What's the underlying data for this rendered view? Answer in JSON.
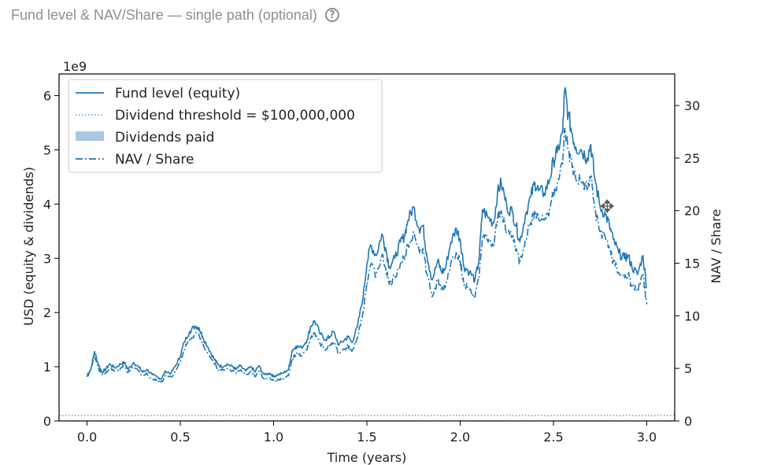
{
  "caption": {
    "title": "Fund level & NAV/Share — single path (optional)",
    "help_icon": "question-circle-icon"
  },
  "colors": {
    "line": "#1f77b4",
    "threshold": "#5b9bd5",
    "dividends": "#a9c8e6",
    "axis": "#000000",
    "caption_text": "#8a8f98"
  },
  "cursor": {
    "icon": "move-cursor-icon",
    "glyph": "✥"
  },
  "chart_data": {
    "type": "line",
    "xlabel": "Time (years)",
    "ylabel": "USD (equity & dividends)",
    "y2label": "NAV / Share",
    "offset_text": "1e9",
    "xlim": [
      -0.15,
      3.15
    ],
    "ylim": [
      0,
      6.4
    ],
    "y2lim": [
      0,
      33.0
    ],
    "x_ticks": [
      "0.0",
      "0.5",
      "1.0",
      "1.5",
      "2.0",
      "2.5",
      "3.0"
    ],
    "y_ticks": [
      "0",
      "1",
      "2",
      "3",
      "4",
      "5",
      "6"
    ],
    "y2_ticks": [
      "0",
      "5",
      "10",
      "15",
      "20",
      "25",
      "30"
    ],
    "legend_position": "upper left",
    "legend": [
      {
        "label": "Fund level (equity)",
        "style": "solid"
      },
      {
        "label": "Dividend threshold = $100,000,000",
        "style": "dotted"
      },
      {
        "label": "Dividends paid",
        "style": "patch"
      },
      {
        "label": "NAV / Share",
        "style": "dashdot"
      }
    ],
    "series": [
      {
        "name": "Fund level (equity)",
        "axis": "left",
        "x": [
          0.0,
          0.02,
          0.04,
          0.06,
          0.08,
          0.1,
          0.12,
          0.15,
          0.18,
          0.2,
          0.22,
          0.25,
          0.28,
          0.3,
          0.32,
          0.35,
          0.38,
          0.4,
          0.42,
          0.45,
          0.48,
          0.5,
          0.52,
          0.55,
          0.58,
          0.6,
          0.62,
          0.65,
          0.68,
          0.7,
          0.72,
          0.75,
          0.78,
          0.8,
          0.82,
          0.85,
          0.88,
          0.9,
          0.92,
          0.95,
          0.98,
          1.0,
          1.02,
          1.05,
          1.08,
          1.1,
          1.12,
          1.15,
          1.18,
          1.2,
          1.22,
          1.25,
          1.28,
          1.3,
          1.32,
          1.35,
          1.38,
          1.4,
          1.42,
          1.45,
          1.48,
          1.5,
          1.52,
          1.55,
          1.58,
          1.6,
          1.62,
          1.65,
          1.68,
          1.7,
          1.72,
          1.75,
          1.78,
          1.8,
          1.82,
          1.85,
          1.88,
          1.9,
          1.92,
          1.95,
          1.98,
          2.0,
          2.02,
          2.05,
          2.08,
          2.1,
          2.12,
          2.15,
          2.18,
          2.2,
          2.22,
          2.25,
          2.28,
          2.3,
          2.32,
          2.35,
          2.38,
          2.4,
          2.42,
          2.45,
          2.48,
          2.5,
          2.52,
          2.55,
          2.56,
          2.58,
          2.6,
          2.62,
          2.65,
          2.68,
          2.7,
          2.72,
          2.75,
          2.78,
          2.8,
          2.82,
          2.85,
          2.88,
          2.9,
          2.92,
          2.95,
          2.98,
          3.0
        ],
        "y": [
          0.85,
          0.95,
          1.28,
          1.05,
          0.9,
          0.95,
          1.05,
          0.98,
          1.05,
          1.08,
          0.95,
          1.08,
          0.98,
          0.9,
          0.95,
          0.85,
          0.8,
          0.78,
          0.92,
          0.88,
          1.05,
          1.2,
          1.45,
          1.65,
          1.75,
          1.72,
          1.55,
          1.35,
          1.15,
          1.05,
          1.0,
          1.05,
          1.0,
          0.95,
          1.02,
          0.92,
          1.0,
          0.9,
          1.02,
          0.85,
          0.88,
          0.82,
          0.85,
          0.88,
          0.95,
          1.3,
          1.38,
          1.35,
          1.5,
          1.75,
          1.85,
          1.6,
          1.5,
          1.55,
          1.65,
          1.4,
          1.5,
          1.55,
          1.45,
          1.75,
          2.3,
          2.9,
          3.25,
          3.05,
          3.45,
          3.2,
          2.85,
          3.0,
          3.3,
          3.4,
          3.7,
          3.95,
          3.55,
          3.6,
          3.1,
          2.6,
          2.95,
          2.75,
          2.8,
          3.3,
          3.55,
          3.35,
          2.85,
          2.75,
          2.6,
          2.95,
          3.9,
          3.75,
          3.65,
          4.2,
          4.4,
          3.95,
          3.85,
          3.6,
          3.3,
          3.8,
          4.15,
          4.4,
          4.25,
          4.2,
          4.45,
          4.8,
          4.95,
          5.35,
          6.1,
          5.65,
          5.3,
          5.05,
          5.0,
          4.85,
          5.1,
          4.5,
          3.95,
          3.8,
          3.6,
          3.35,
          3.1,
          3.0,
          3.05,
          2.85,
          2.7,
          3.05,
          2.45
        ]
      },
      {
        "name": "NAV / Share",
        "axis": "right",
        "x": [
          0.0,
          0.02,
          0.04,
          0.06,
          0.08,
          0.1,
          0.12,
          0.15,
          0.18,
          0.2,
          0.22,
          0.25,
          0.28,
          0.3,
          0.32,
          0.35,
          0.38,
          0.4,
          0.42,
          0.45,
          0.48,
          0.5,
          0.52,
          0.55,
          0.58,
          0.6,
          0.62,
          0.65,
          0.68,
          0.7,
          0.72,
          0.75,
          0.78,
          0.8,
          0.82,
          0.85,
          0.88,
          0.9,
          0.92,
          0.95,
          0.98,
          1.0,
          1.02,
          1.05,
          1.08,
          1.1,
          1.12,
          1.15,
          1.18,
          1.2,
          1.22,
          1.25,
          1.28,
          1.3,
          1.32,
          1.35,
          1.38,
          1.4,
          1.42,
          1.45,
          1.48,
          1.5,
          1.52,
          1.55,
          1.58,
          1.6,
          1.62,
          1.65,
          1.68,
          1.7,
          1.72,
          1.75,
          1.78,
          1.8,
          1.82,
          1.85,
          1.88,
          1.9,
          1.92,
          1.95,
          1.98,
          2.0,
          2.02,
          2.05,
          2.08,
          2.1,
          2.12,
          2.15,
          2.18,
          2.2,
          2.22,
          2.25,
          2.28,
          2.3,
          2.32,
          2.35,
          2.38,
          2.4,
          2.42,
          2.45,
          2.48,
          2.5,
          2.52,
          2.55,
          2.56,
          2.58,
          2.6,
          2.62,
          2.65,
          2.68,
          2.7,
          2.72,
          2.75,
          2.78,
          2.8,
          2.82,
          2.85,
          2.88,
          2.9,
          2.92,
          2.95,
          2.98,
          3.0
        ],
        "y": [
          4.2,
          4.8,
          6.2,
          5.1,
          4.4,
          4.6,
          5.0,
          4.7,
          5.0,
          5.2,
          4.6,
          5.1,
          4.7,
          4.3,
          4.5,
          4.0,
          3.8,
          3.7,
          4.3,
          4.2,
          4.9,
          5.6,
          6.8,
          7.8,
          8.3,
          8.2,
          7.4,
          6.4,
          5.5,
          5.0,
          4.8,
          5.0,
          4.8,
          4.5,
          4.8,
          4.4,
          4.7,
          4.2,
          4.7,
          4.0,
          4.1,
          3.8,
          3.9,
          4.0,
          4.3,
          5.9,
          6.3,
          6.2,
          6.8,
          7.9,
          8.4,
          7.3,
          6.8,
          7.1,
          7.5,
          6.4,
          6.8,
          7.1,
          6.6,
          7.9,
          10.4,
          13.2,
          14.8,
          13.9,
          15.7,
          14.6,
          13.0,
          13.7,
          15.0,
          15.5,
          16.8,
          18.0,
          16.2,
          16.4,
          14.1,
          11.8,
          13.4,
          12.5,
          12.7,
          15.0,
          16.1,
          15.2,
          12.9,
          12.5,
          11.8,
          13.4,
          17.7,
          17.0,
          16.6,
          19.1,
          20.0,
          18.0,
          17.5,
          16.4,
          15.0,
          17.3,
          18.9,
          20.0,
          19.3,
          19.1,
          20.2,
          21.8,
          22.5,
          24.3,
          27.7,
          25.7,
          24.1,
          23.0,
          22.7,
          22.0,
          23.2,
          20.4,
          18.0,
          17.3,
          16.4,
          15.2,
          14.1,
          13.6,
          13.9,
          12.9,
          12.3,
          13.9,
          11.1
        ]
      },
      {
        "name": "Dividend threshold = $100,000,000",
        "axis": "left",
        "x": [
          -0.15,
          3.15
        ],
        "y": [
          0.1,
          0.1
        ]
      }
    ]
  }
}
